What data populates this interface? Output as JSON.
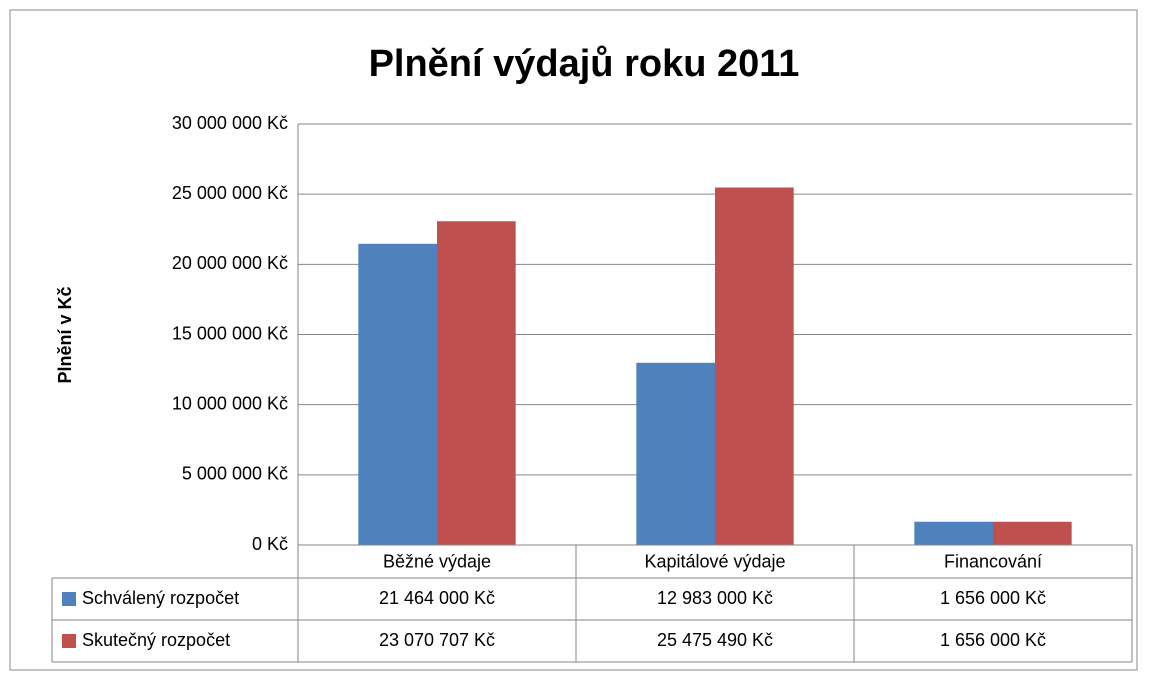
{
  "chart_data": {
    "type": "bar",
    "title": "Plnění výdajů roku 2011",
    "ylabel": "Plnění v Kč",
    "categories": [
      "Běžné výdaje",
      "Kapitálové výdaje",
      "Financování"
    ],
    "series": [
      {
        "name": "Schválený rozpočet",
        "color": "#4f81bd",
        "values": [
          21464000,
          12983000,
          1656000
        ],
        "value_labels": [
          "21 464 000 Kč",
          "12 983 000 Kč",
          "1 656 000 Kč"
        ]
      },
      {
        "name": "Skutečný rozpočet",
        "color": "#c0504d",
        "values": [
          23070707,
          25475490,
          1656000
        ],
        "value_labels": [
          "23 070 707 Kč",
          "25 475 490 Kč",
          "1 656 000 Kč"
        ]
      }
    ],
    "ylim": [
      0,
      30000000
    ],
    "yticks": [
      {
        "value": 0,
        "label": "0 Kč"
      },
      {
        "value": 5000000,
        "label": "5 000 000 Kč"
      },
      {
        "value": 10000000,
        "label": "10 000 000 Kč"
      },
      {
        "value": 15000000,
        "label": "15 000 000 Kč"
      },
      {
        "value": 20000000,
        "label": "20 000 000 Kč"
      },
      {
        "value": 25000000,
        "label": "25 000 000 Kč"
      },
      {
        "value": 30000000,
        "label": "30 000 000 Kč"
      }
    ],
    "grid": true,
    "data_table": true
  }
}
